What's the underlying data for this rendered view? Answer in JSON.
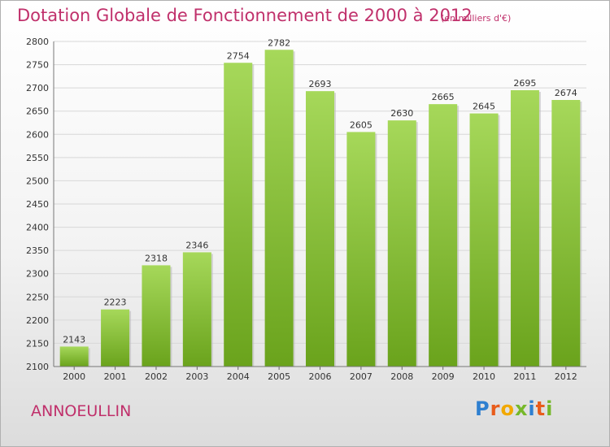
{
  "header": {
    "title": "Dotation Globale de Fonctionnement de 2000 à 2012",
    "unit": "(en milliers d'€)"
  },
  "footer": {
    "city": "ANNOEULLIN",
    "logo_text": "Proxiti"
  },
  "colors": {
    "bar_light": "#a6d85a",
    "bar_dark": "#6aa31c",
    "accent": "#c0306b",
    "grid": "#d8d8d8"
  },
  "chart_data": {
    "type": "bar",
    "title": "Dotation Globale de Fonctionnement de 2000 à 2012",
    "subtitle": "(en milliers d'€)",
    "xlabel": "",
    "ylabel": "",
    "categories": [
      "2000",
      "2001",
      "2002",
      "2003",
      "2004",
      "2005",
      "2006",
      "2007",
      "2008",
      "2009",
      "2010",
      "2011",
      "2012"
    ],
    "values": [
      2143,
      2223,
      2318,
      2346,
      2754,
      2782,
      2693,
      2605,
      2630,
      2665,
      2645,
      2695,
      2674
    ],
    "ylim": [
      2100,
      2800
    ],
    "yticks": [
      2100,
      2150,
      2200,
      2250,
      2300,
      2350,
      2400,
      2450,
      2500,
      2550,
      2600,
      2650,
      2700,
      2750,
      2800
    ],
    "grid": true,
    "legend": "none"
  }
}
